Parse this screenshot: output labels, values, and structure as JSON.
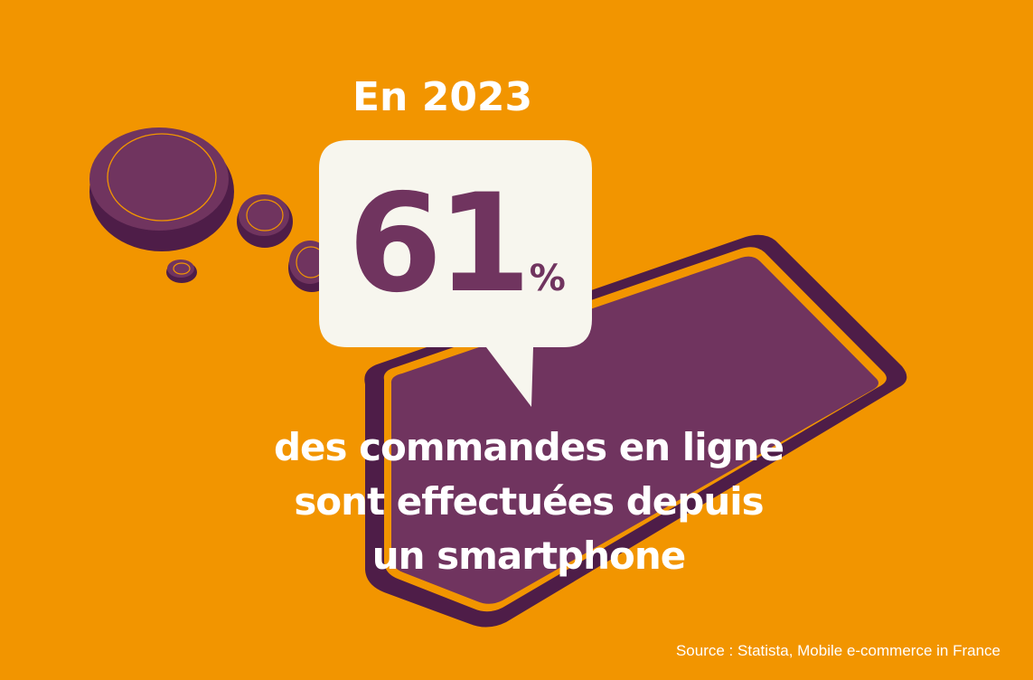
{
  "headline": {
    "year_label": "En 2023",
    "stat_value": "61",
    "stat_unit": "%"
  },
  "caption": {
    "lines": [
      "des commandes en ligne",
      "sont effectuées depuis",
      "un smartphone"
    ]
  },
  "source": "Source : Statista, Mobile e-commerce in France",
  "colors": {
    "background": "#F29500",
    "plum": "#70345F",
    "plum_dark": "#4E1D48",
    "bubble": "#F7F6EE",
    "text": "#FFFFFF"
  },
  "icons": {
    "smartphone": "smartphone-illustration",
    "thought_bubbles": "thought-bubble-dots",
    "speech_bubble": "speech-bubble"
  }
}
